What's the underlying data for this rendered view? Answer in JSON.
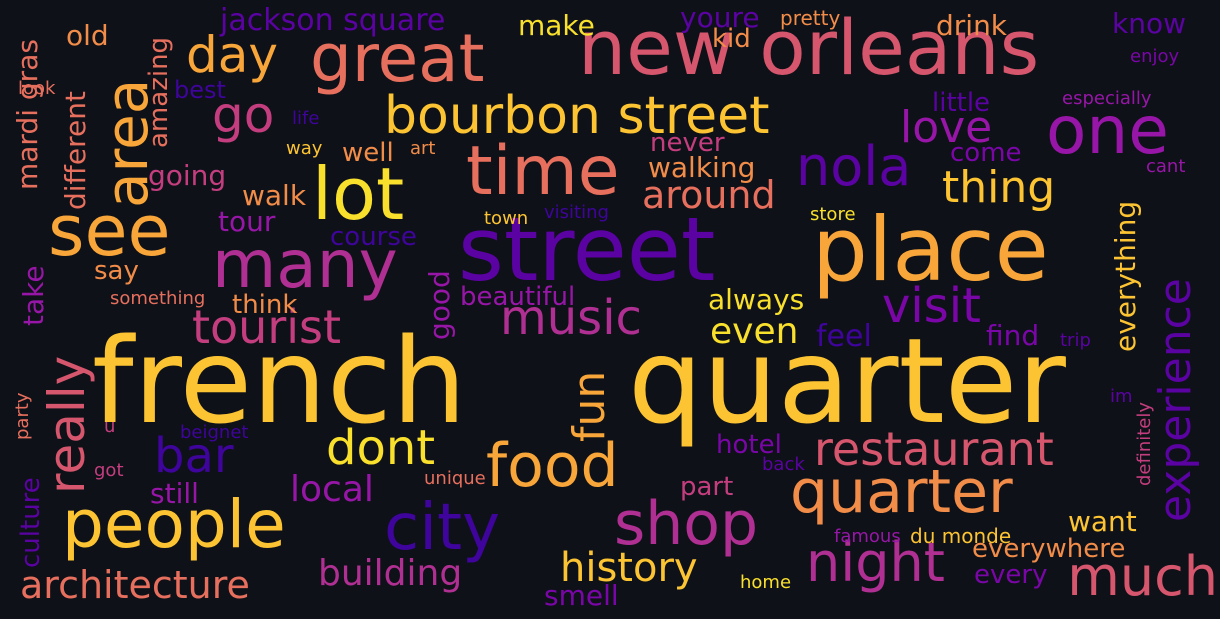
{
  "background": "#0f1118",
  "palette": {
    "yellow": "#f9e02c",
    "gold": "#fcc432",
    "amber": "#f8a63a",
    "orange": "#f28c49",
    "salmon": "#e76f5d",
    "rose": "#d5566d",
    "magenta": "#c43e7f",
    "pink_purple": "#b02f92",
    "purple": "#9716a8",
    "violet": "#7a06a8",
    "indigo": "#5b02a3",
    "deep": "#3e049c"
  },
  "words": [
    {
      "id": "french",
      "text": "french",
      "color": "#fcc432"
    },
    {
      "id": "quarter-big",
      "text": "quarter",
      "color": "#fcc432"
    },
    {
      "id": "street",
      "text": "street",
      "color": "#5b02a3"
    },
    {
      "id": "place",
      "text": "place",
      "color": "#f8a63a"
    },
    {
      "id": "new-orleans",
      "text": "new orleans",
      "color": "#d5566d"
    },
    {
      "id": "great",
      "text": "great",
      "color": "#e76f5d"
    },
    {
      "id": "lot",
      "text": "lot",
      "color": "#f9e02c"
    },
    {
      "id": "time",
      "text": "time",
      "color": "#e76f5d"
    },
    {
      "id": "see",
      "text": "see",
      "color": "#f8a63a"
    },
    {
      "id": "area",
      "text": "area",
      "color": "#f8a63a"
    },
    {
      "id": "many",
      "text": "many",
      "color": "#b02f92"
    },
    {
      "id": "people",
      "text": "people",
      "color": "#fcc432"
    },
    {
      "id": "city",
      "text": "city",
      "color": "#3e049c"
    },
    {
      "id": "quarter-2",
      "text": "quarter",
      "color": "#f28c49"
    },
    {
      "id": "food",
      "text": "food",
      "color": "#f8a63a"
    },
    {
      "id": "shop",
      "text": "shop",
      "color": "#b02f92"
    },
    {
      "id": "night",
      "text": "night",
      "color": "#b02f92"
    },
    {
      "id": "much",
      "text": "much",
      "color": "#d5566d"
    },
    {
      "id": "one",
      "text": "one",
      "color": "#9716a8"
    },
    {
      "id": "bourbon-street",
      "text": "bourbon street",
      "color": "#fcc432"
    },
    {
      "id": "nola",
      "text": "nola",
      "color": "#5b02a3"
    },
    {
      "id": "experience",
      "text": "experience",
      "color": "#5b02a3"
    },
    {
      "id": "really",
      "text": "really",
      "color": "#d5566d"
    },
    {
      "id": "restaurant",
      "text": "restaurant",
      "color": "#d5566d"
    },
    {
      "id": "dont",
      "text": "dont",
      "color": "#f9e02c"
    },
    {
      "id": "bar",
      "text": "bar",
      "color": "#3e049c"
    },
    {
      "id": "music",
      "text": "music",
      "color": "#b02f92"
    },
    {
      "id": "visit",
      "text": "visit",
      "color": "#7a06a8"
    },
    {
      "id": "tourist",
      "text": "tourist",
      "color": "#c43e7f"
    },
    {
      "id": "go",
      "text": "go",
      "color": "#c43e7f"
    },
    {
      "id": "day",
      "text": "day",
      "color": "#f8a63a"
    },
    {
      "id": "love",
      "text": "love",
      "color": "#9716a8"
    },
    {
      "id": "thing",
      "text": "thing",
      "color": "#fcc432"
    },
    {
      "id": "fun",
      "text": "fun",
      "color": "#f8a63a"
    },
    {
      "id": "architecture",
      "text": "architecture",
      "color": "#e76f5d"
    },
    {
      "id": "building",
      "text": "building",
      "color": "#b02f92"
    },
    {
      "id": "history",
      "text": "history",
      "color": "#fcc432"
    },
    {
      "id": "around",
      "text": "around",
      "color": "#e76f5d"
    },
    {
      "id": "even",
      "text": "even",
      "color": "#f9e02c"
    },
    {
      "id": "local",
      "text": "local",
      "color": "#9716a8"
    },
    {
      "id": "hotel",
      "text": "hotel",
      "color": "#7a06a8"
    },
    {
      "id": "everywhere",
      "text": "everywhere",
      "color": "#f28c49"
    },
    {
      "id": "everything",
      "text": "everything",
      "color": "#fcc432"
    },
    {
      "id": "walking",
      "text": "walking",
      "color": "#f28c49"
    },
    {
      "id": "always",
      "text": "always",
      "color": "#f9e02c"
    },
    {
      "id": "jackson-square",
      "text": "jackson square",
      "color": "#5b02a3"
    },
    {
      "id": "make",
      "text": "make",
      "color": "#f9e02c"
    },
    {
      "id": "youre",
      "text": "youre",
      "color": "#5b02a3"
    },
    {
      "id": "pretty",
      "text": "pretty",
      "color": "#f28c49"
    },
    {
      "id": "drink",
      "text": "drink",
      "color": "#f28c49"
    },
    {
      "id": "know",
      "text": "know",
      "color": "#5b02a3"
    },
    {
      "id": "enjoy",
      "text": "enjoy",
      "color": "#7a06a8"
    },
    {
      "id": "kid",
      "text": "kid",
      "color": "#f28c49"
    },
    {
      "id": "old",
      "text": "old",
      "color": "#f28c49"
    },
    {
      "id": "mardi-gras",
      "text": "mardi gras",
      "color": "#e76f5d"
    },
    {
      "id": "look",
      "text": "look",
      "color": "#e76f5d"
    },
    {
      "id": "different",
      "text": "different",
      "color": "#e76f5d"
    },
    {
      "id": "amazing",
      "text": "amazing",
      "color": "#e76f5d"
    },
    {
      "id": "best",
      "text": "best",
      "color": "#3e049c"
    },
    {
      "id": "life",
      "text": "life",
      "color": "#3e049c"
    },
    {
      "id": "way",
      "text": "way",
      "color": "#fcc432"
    },
    {
      "id": "well",
      "text": "well",
      "color": "#f28c49"
    },
    {
      "id": "art",
      "text": "art",
      "color": "#f28c49"
    },
    {
      "id": "little",
      "text": "little",
      "color": "#5b02a3"
    },
    {
      "id": "especially",
      "text": "especially",
      "color": "#9716a8"
    },
    {
      "id": "never",
      "text": "never",
      "color": "#c43e7f"
    },
    {
      "id": "come",
      "text": "come",
      "color": "#7a06a8"
    },
    {
      "id": "cant",
      "text": "cant",
      "color": "#9716a8"
    },
    {
      "id": "going",
      "text": "going",
      "color": "#c43e7f"
    },
    {
      "id": "walk",
      "text": "walk",
      "color": "#f28c49"
    },
    {
      "id": "tour",
      "text": "tour",
      "color": "#9716a8"
    },
    {
      "id": "town",
      "text": "town",
      "color": "#fcc432"
    },
    {
      "id": "visiting",
      "text": "visiting",
      "color": "#3e049c"
    },
    {
      "id": "store",
      "text": "store",
      "color": "#f9e02c"
    },
    {
      "id": "course",
      "text": "course",
      "color": "#3e049c"
    },
    {
      "id": "say",
      "text": "say",
      "color": "#f28c49"
    },
    {
      "id": "take",
      "text": "take",
      "color": "#9716a8"
    },
    {
      "id": "something",
      "text": "something",
      "color": "#e76f5d"
    },
    {
      "id": "think",
      "text": "think",
      "color": "#f28c49"
    },
    {
      "id": "beautiful",
      "text": "beautiful",
      "color": "#9716a8"
    },
    {
      "id": "good",
      "text": "good",
      "color": "#9716a8"
    },
    {
      "id": "feel",
      "text": "feel",
      "color": "#3e049c"
    },
    {
      "id": "find",
      "text": "find",
      "color": "#7a06a8"
    },
    {
      "id": "trip",
      "text": "trip",
      "color": "#5b02a3"
    },
    {
      "id": "im",
      "text": "im",
      "color": "#5b02a3"
    },
    {
      "id": "party",
      "text": "party",
      "color": "#e76f5d"
    },
    {
      "id": "u",
      "text": "u",
      "color": "#c43e7f"
    },
    {
      "id": "beignet",
      "text": "beignet",
      "color": "#3e049c"
    },
    {
      "id": "culture",
      "text": "culture",
      "color": "#5b02a3"
    },
    {
      "id": "got",
      "text": "got",
      "color": "#c43e7f"
    },
    {
      "id": "still",
      "text": "still",
      "color": "#9716a8"
    },
    {
      "id": "unique",
      "text": "unique",
      "color": "#e76f5d"
    },
    {
      "id": "part",
      "text": "part",
      "color": "#c43e7f"
    },
    {
      "id": "back",
      "text": "back",
      "color": "#5b02a3"
    },
    {
      "id": "definitely",
      "text": "definitely",
      "color": "#c43e7f"
    },
    {
      "id": "want",
      "text": "want",
      "color": "#fcc432"
    },
    {
      "id": "famous",
      "text": "famous",
      "color": "#9716a8"
    },
    {
      "id": "du-monde",
      "text": "du monde",
      "color": "#fcc432"
    },
    {
      "id": "every",
      "text": "every",
      "color": "#7a06a8"
    },
    {
      "id": "smell",
      "text": "smell",
      "color": "#7a06a8"
    },
    {
      "id": "home",
      "text": "home",
      "color": "#f9e02c"
    }
  ]
}
